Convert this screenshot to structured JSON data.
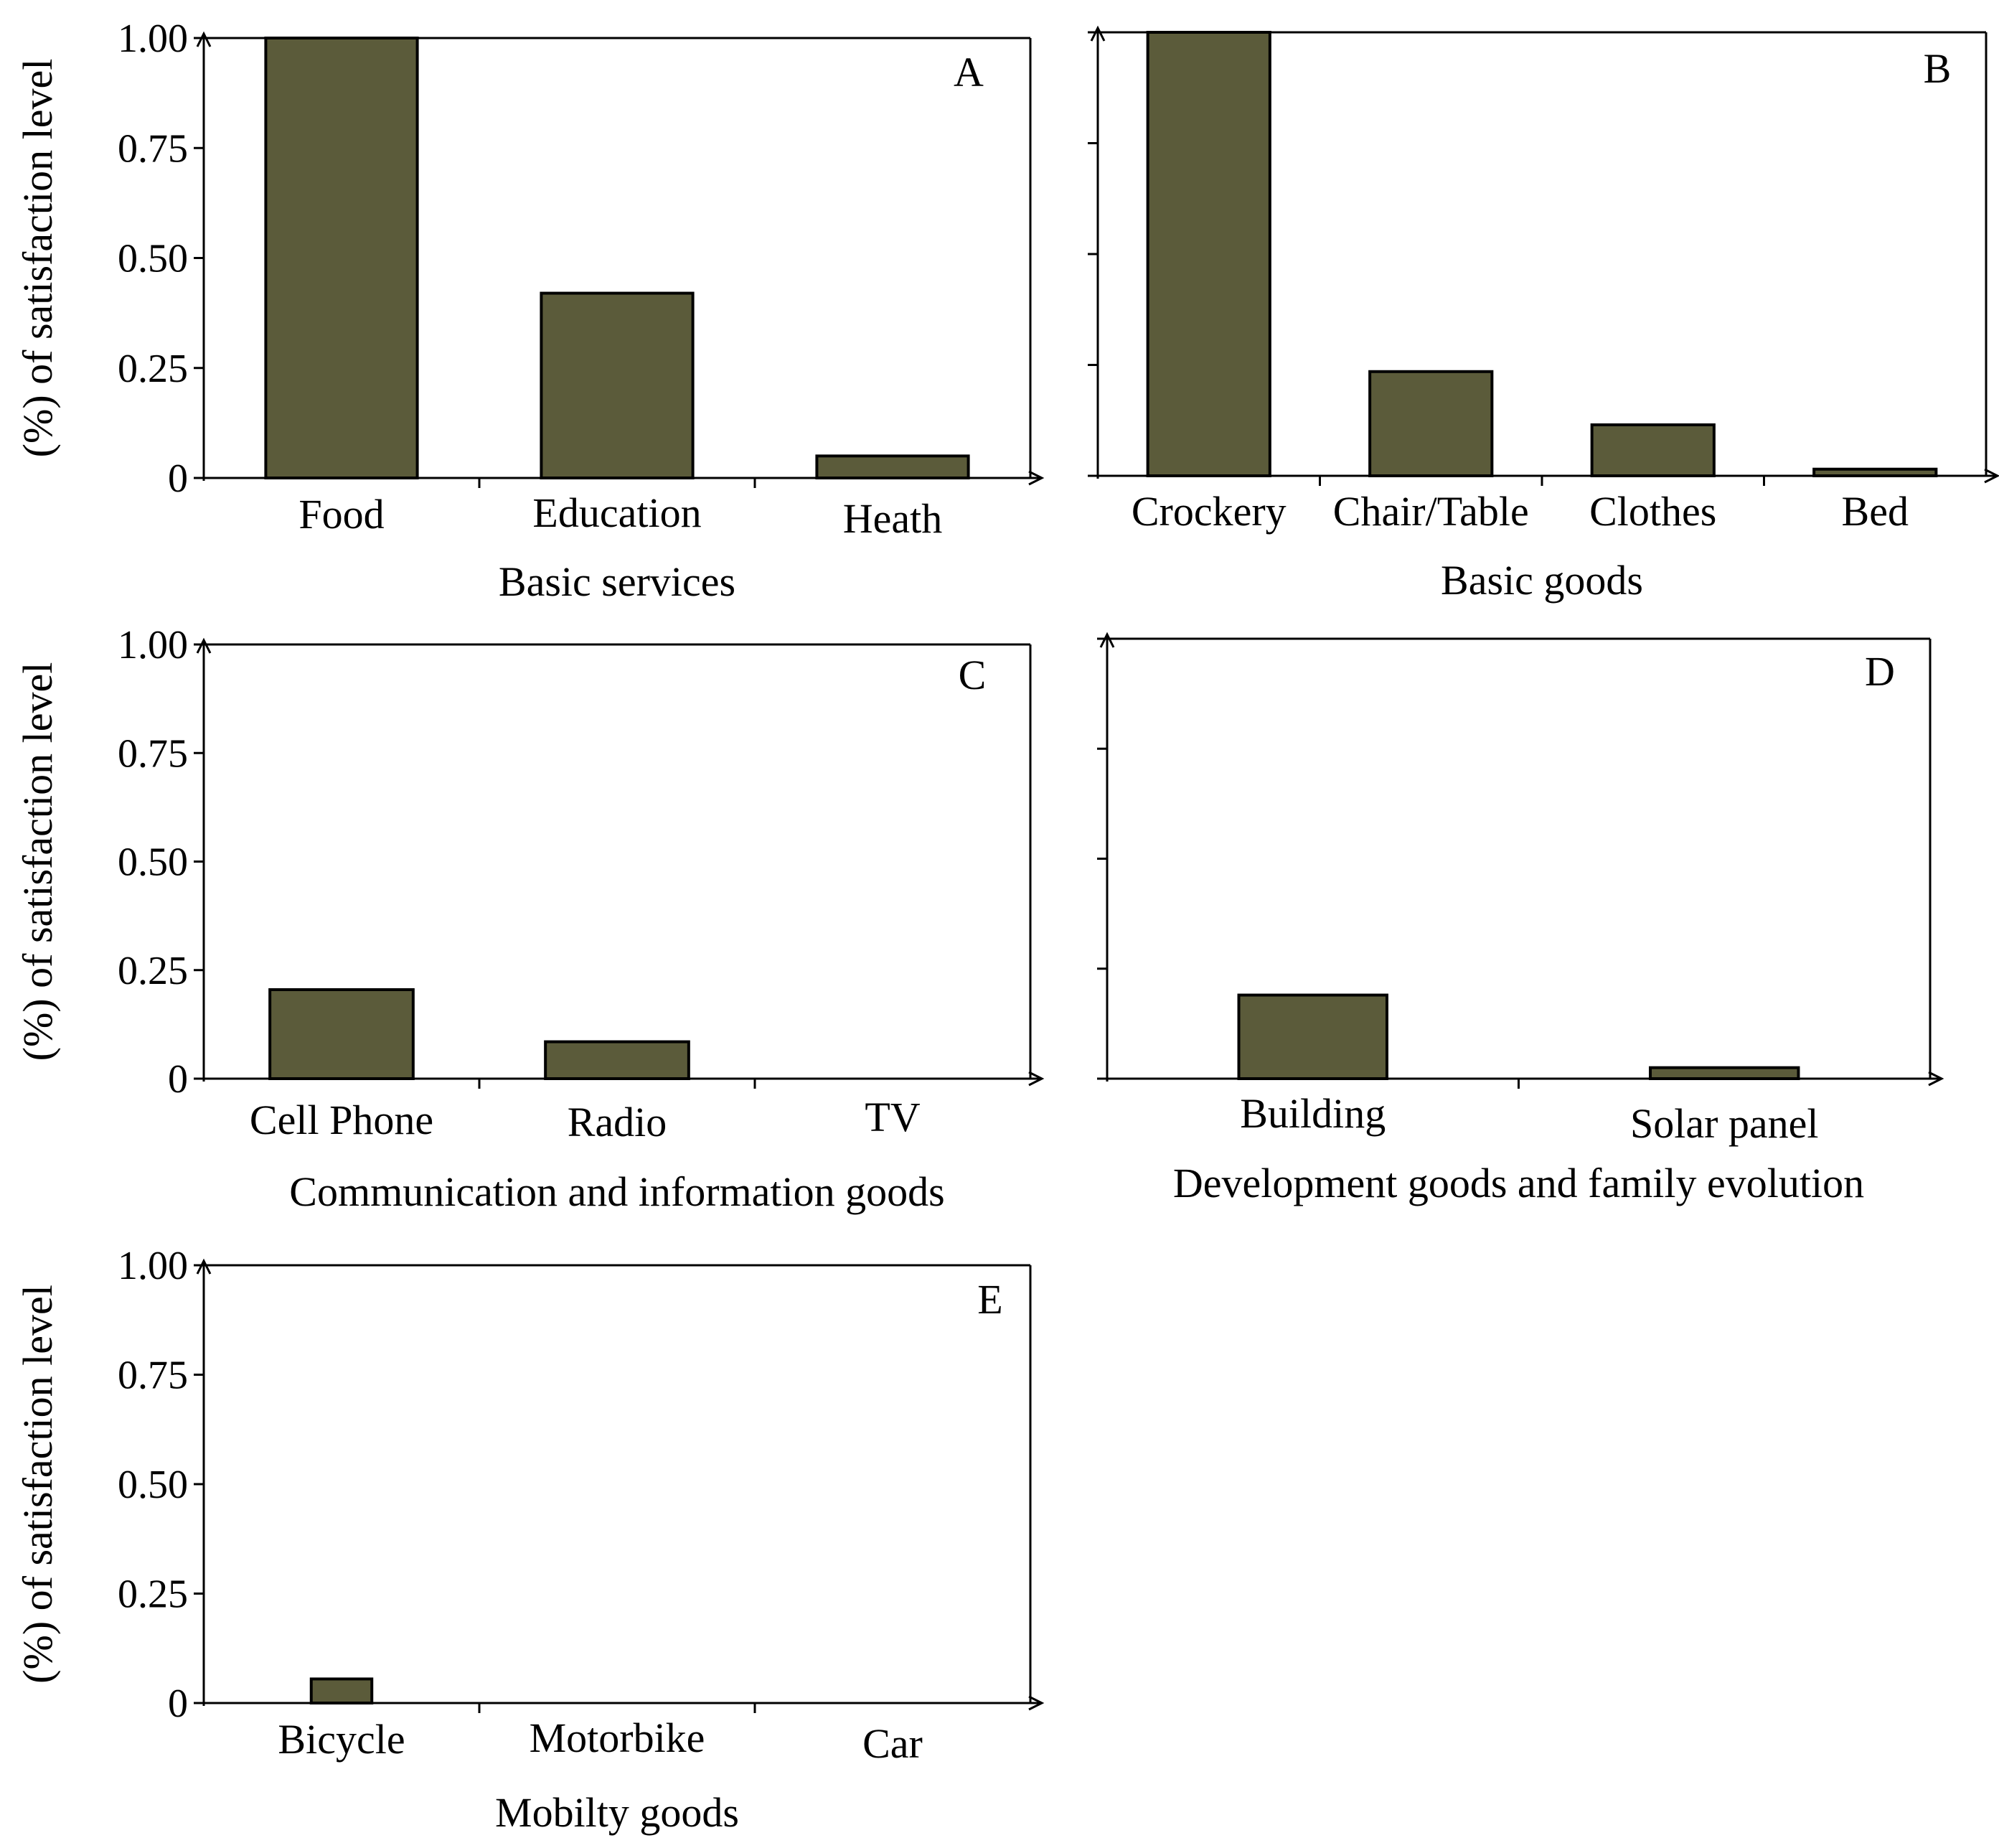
{
  "figure": {
    "bar_color": "#5b5b3a"
  },
  "chart_data": [
    {
      "id": "A",
      "type": "bar",
      "panel_label": "A",
      "categories": [
        "Food",
        "Education",
        "Heath"
      ],
      "values": [
        1.0,
        0.42,
        0.05
      ],
      "xlabel": "Basic services",
      "ylabel": "(%) of satisfaction level",
      "ylim": [
        0,
        1.0
      ],
      "yticks": [
        0,
        0.25,
        0.5,
        0.75,
        1.0
      ],
      "ytick_labels": [
        "0",
        "0.25",
        "0.50",
        "0.75",
        "1.00"
      ]
    },
    {
      "id": "B",
      "type": "bar",
      "panel_label": "B",
      "categories": [
        "Crockery",
        "Chair/Table",
        "Clothes",
        "Bed"
      ],
      "values": [
        1.0,
        0.235,
        0.115,
        0.015
      ],
      "xlabel": "Basic goods",
      "ylabel": "",
      "ylim": [
        0,
        1.0
      ],
      "yticks": [
        0,
        0.25,
        0.5,
        0.75,
        1.0
      ],
      "ytick_labels": []
    },
    {
      "id": "C",
      "type": "bar",
      "panel_label": "C",
      "categories": [
        "Cell Phone",
        "Radio",
        "TV"
      ],
      "values": [
        0.205,
        0.085,
        0.0
      ],
      "xlabel": "Communication and information goods",
      "ylabel": "(%) of satisfaction level",
      "ylim": [
        0,
        1.0
      ],
      "yticks": [
        0,
        0.25,
        0.5,
        0.75,
        1.0
      ],
      "ytick_labels": [
        "0",
        "0.25",
        "0.50",
        "0.75",
        "1.00"
      ]
    },
    {
      "id": "D",
      "type": "bar",
      "panel_label": "D",
      "categories": [
        "Building",
        "Solar panel"
      ],
      "values": [
        0.19,
        0.025
      ],
      "xlabel": "Development goods and family evolution",
      "ylabel": "",
      "ylim": [
        0,
        1.0
      ],
      "yticks": [
        0,
        0.25,
        0.5,
        0.75,
        1.0
      ],
      "ytick_labels": []
    },
    {
      "id": "E",
      "type": "bar",
      "panel_label": "E",
      "categories": [
        "Bicycle",
        "Motorbike",
        "Car"
      ],
      "values": [
        0.055,
        0.0,
        0.0
      ],
      "xlabel": "Mobilty goods",
      "ylabel": "(%) of satisfaction level",
      "ylim": [
        0,
        1.0
      ],
      "yticks": [
        0,
        0.25,
        0.5,
        0.75,
        1.0
      ],
      "ytick_labels": [
        "0",
        "0.25",
        "0.50",
        "0.75",
        "1.00"
      ]
    }
  ]
}
